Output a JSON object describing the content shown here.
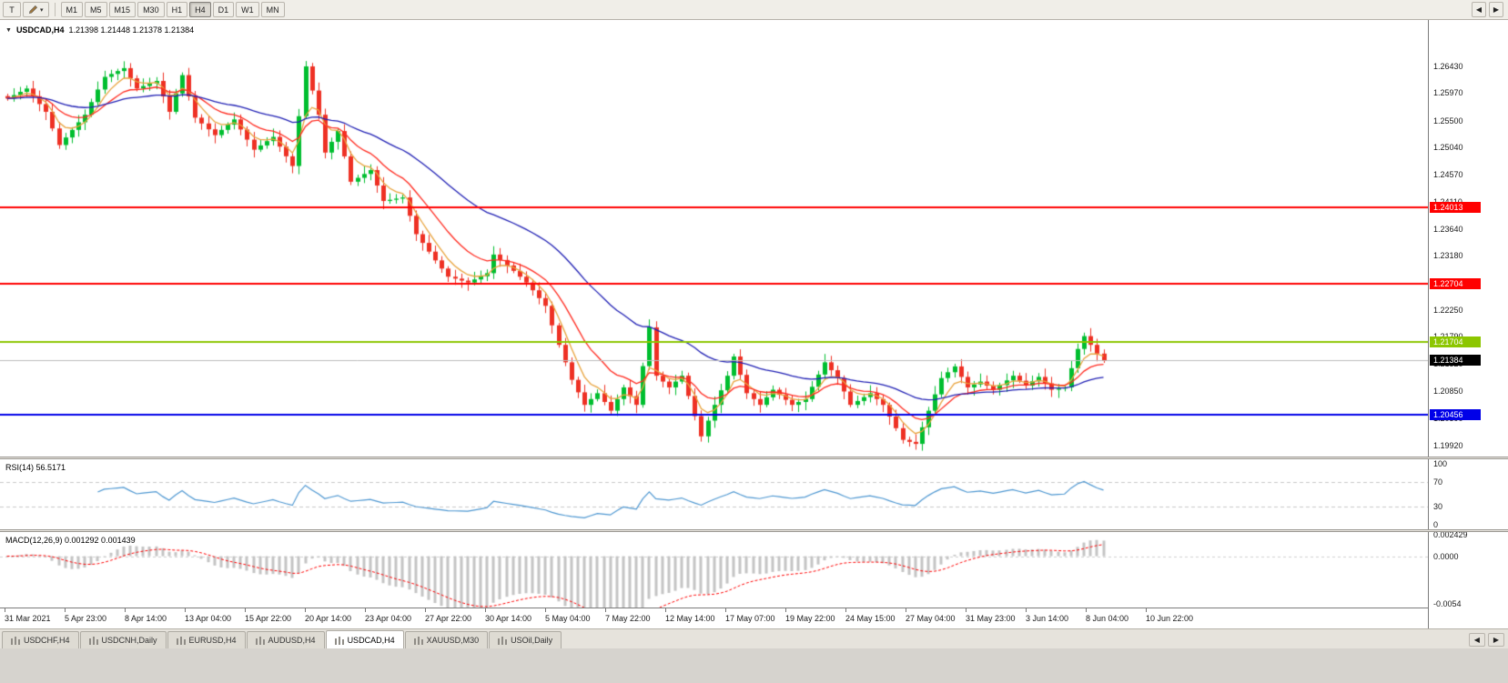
{
  "colors": {
    "up": "#00BE2F",
    "down": "#EE3124",
    "window": "#D6D3CE",
    "chart_bg": "#FFFFFF"
  },
  "icons": {
    "dropdown": "▼",
    "caret": "▾",
    "prev": "◀",
    "next": "▶"
  },
  "toolbar": {
    "t_label": "T",
    "timeframes": [
      "M1",
      "M5",
      "M15",
      "M30",
      "H1",
      "H4",
      "D1",
      "W1",
      "MN"
    ],
    "active_timeframe": "H4"
  },
  "tabs": [
    {
      "label": "USDCHF,H4",
      "active": false
    },
    {
      "label": "USDCNH,Daily",
      "active": false
    },
    {
      "label": "EURUSD,H4",
      "active": false
    },
    {
      "label": "AUDUSD,H4",
      "active": false
    },
    {
      "label": "USDCAD,H4",
      "active": true
    },
    {
      "label": "XAUUSD,M30",
      "active": false
    },
    {
      "label": "USOil,Daily",
      "active": false
    }
  ],
  "chart_data": {
    "type": "candlestick",
    "title": "USDCAD,H4",
    "ohlc_text": "1.21398 1.21448 1.21378 1.21384",
    "ylim": [
      1.19733,
      1.27226
    ],
    "y_ticks": [
      "1.26430",
      "1.25970",
      "1.25500",
      "1.25040",
      "1.24570",
      "1.24110",
      "1.23640",
      "1.23180",
      "1.22710",
      "1.22250",
      "1.21790",
      "1.21320",
      "1.20850",
      "1.20390",
      "1.19920"
    ],
    "x_ticks": [
      "31 Mar 2021",
      "5 Apr 23:00",
      "8 Apr 14:00",
      "13 Apr 04:00",
      "15 Apr 22:00",
      "20 Apr 14:00",
      "23 Apr 04:00",
      "27 Apr 22:00",
      "30 Apr 14:00",
      "5 May 04:00",
      "7 May 22:00",
      "12 May 14:00",
      "17 May 07:00",
      "19 May 22:00",
      "24 May 15:00",
      "27 May 04:00",
      "31 May 23:00",
      "3 Jun 14:00",
      "8 Jun 04:00",
      "10 Jun 22:00"
    ],
    "bar_layout": {
      "x_start": 4,
      "spacing": 7.13,
      "body_width": 5
    },
    "closes": [
      1.2588,
      1.25937,
      1.25993,
      1.2605,
      1.25917,
      1.25783,
      1.2565,
      1.25365,
      1.2508,
      1.2521,
      1.2534,
      1.2547,
      1.256,
      1.25817,
      1.26033,
      1.2625,
      1.263,
      1.2635,
      1.264,
      1.26225,
      1.2605,
      1.26093,
      1.26137,
      1.2618,
      1.25915,
      1.2565,
      1.25965,
      1.2628,
      1.25915,
      1.2555,
      1.2545,
      1.2535,
      1.2525,
      1.2534,
      1.2543,
      1.2552,
      1.25347,
      1.25173,
      1.25,
      1.25073,
      1.25147,
      1.2522,
      1.25053,
      1.24887,
      1.2472,
      1.25575,
      1.2643,
      1.26015,
      1.256,
      1.2495,
      1.25135,
      1.2532,
      1.24885,
      1.2445,
      1.24517,
      1.24583,
      1.2465,
      1.24385,
      1.2412,
      1.2414,
      1.2416,
      1.2418,
      1.23865,
      1.2355,
      1.234,
      1.2325,
      1.231,
      1.2296,
      1.2282,
      1.22787,
      1.22753,
      1.2272,
      1.22773,
      1.22827,
      1.2288,
      1.232,
      1.23107,
      1.23013,
      1.2292,
      1.2282,
      1.2272,
      1.22587,
      1.22453,
      1.2232,
      1.21985,
      1.2165,
      1.2135,
      1.2105,
      1.20835,
      1.2062,
      1.2072,
      1.2082,
      1.2067,
      1.2052,
      1.2072,
      1.2092,
      1.2077,
      1.2062,
      1.21285,
      1.2195,
      1.2112,
      1.2102,
      1.2092,
      1.2102,
      1.2112,
      1.20773,
      1.20427,
      1.2008,
      1.2035,
      1.2062,
      1.2087,
      1.2112,
      1.2145,
      1.21135,
      1.2082,
      1.2072,
      1.2062,
      1.2075,
      1.2088,
      1.20793,
      1.20707,
      1.2062,
      1.2067,
      1.2072,
      1.2093,
      1.2114,
      1.2135,
      1.21215,
      1.2108,
      1.2085,
      1.2062,
      1.20687,
      1.20753,
      1.2082,
      1.2072,
      1.2062,
      1.2042,
      1.2022,
      1.2002,
      1.19985,
      1.1995,
      1.20235,
      1.2052,
      1.208,
      1.2108,
      1.2118,
      1.2128,
      1.211,
      1.2092,
      1.2097,
      1.2102,
      1.2095,
      1.2088,
      1.2096,
      1.2104,
      1.2112,
      1.21035,
      1.2095,
      1.21025,
      1.211,
      1.2099,
      1.2088,
      1.209,
      1.2092,
      1.2125,
      1.2158,
      1.218,
      1.2165,
      1.215,
      1.2138
    ],
    "moving_averages": [
      {
        "name": "MA fast",
        "period": 5,
        "color": "#E8A33D"
      },
      {
        "name": "MA mid",
        "period": 12,
        "color": "#FF2A1F"
      },
      {
        "name": "MA slow",
        "period": 34,
        "color": "#2121B4"
      }
    ],
    "levels": [
      {
        "text": "1.24013",
        "price": 1.24013,
        "color": "#FF0000",
        "width": 2
      },
      {
        "text": "1.22704",
        "price": 1.22704,
        "color": "#FF0000",
        "width": 2
      },
      {
        "text": "1.21704",
        "price": 1.21704,
        "color": "#8CC600",
        "width": 2
      },
      {
        "text": "1.20456",
        "price": 1.20456,
        "color": "#0000E8",
        "width": 2
      }
    ],
    "bid": {
      "text": "1.21384",
      "price": 1.21384,
      "line_color": "#BDBDBD",
      "badge_color": "#000000"
    },
    "rsi": {
      "period": 14,
      "label": "RSI(14) 56.5171",
      "color": "#4E97D1",
      "levels": [
        70,
        30
      ],
      "scale": [
        {
          "text": "100",
          "v": 100
        },
        {
          "text": "70",
          "v": 70
        },
        {
          "text": "30",
          "v": 30
        },
        {
          "text": "0",
          "v": 0
        }
      ]
    },
    "macd": {
      "fast": 12,
      "slow": 26,
      "signal": 9,
      "label": "MACD(12,26,9) 0.001292 0.001439",
      "hist_color": "#C4C4C4",
      "signal_color": "#FF0000",
      "ylim": [
        -0.0054,
        0.002429
      ],
      "scale": [
        {
          "text": "0.002429",
          "v": 0.002429
        },
        {
          "text": "0.0000",
          "v": 0
        },
        {
          "text": "-0.0054",
          "v": -0.0054
        }
      ]
    }
  }
}
